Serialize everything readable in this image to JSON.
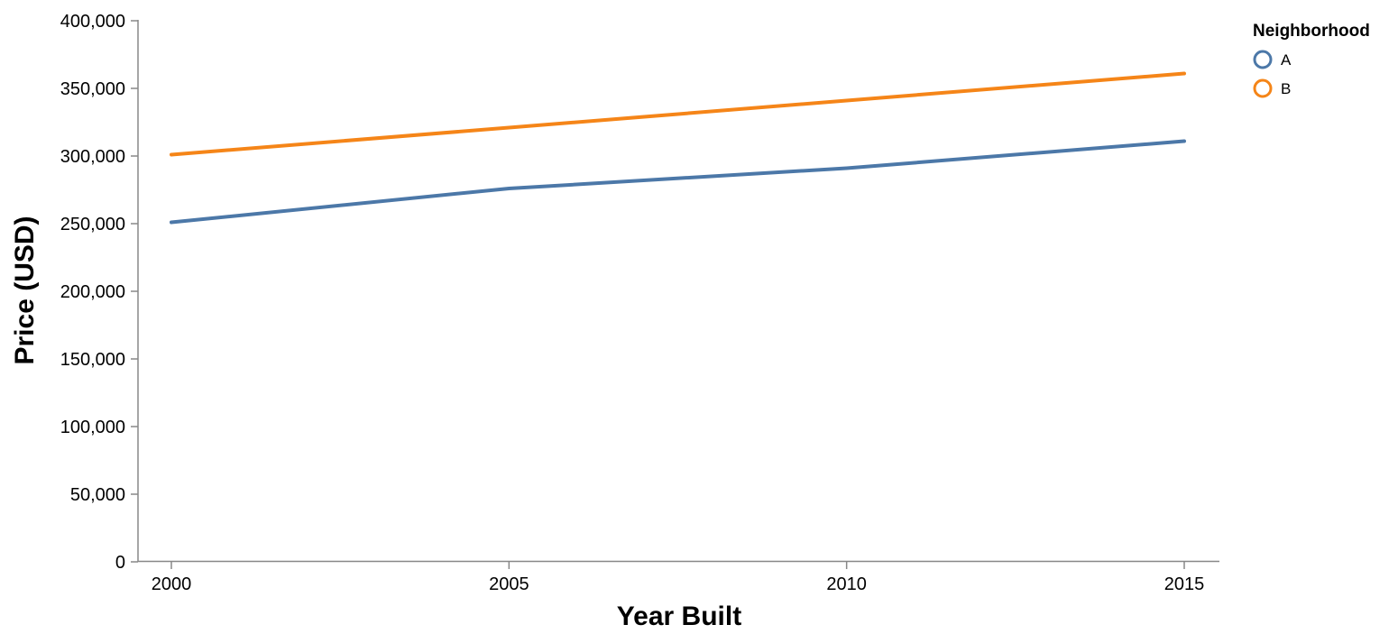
{
  "chart_data": {
    "type": "line",
    "xlabel": "Year Built",
    "ylabel": "Price (USD)",
    "x": [
      2000,
      2005,
      2010,
      2015
    ],
    "xlim": [
      1999.5,
      2015.5
    ],
    "ylim": [
      0,
      400000
    ],
    "x_ticks": [
      "2000",
      "2005",
      "2010",
      "2015"
    ],
    "y_ticks": [
      "0",
      "50,000",
      "100,000",
      "150,000",
      "200,000",
      "250,000",
      "300,000",
      "350,000",
      "400,000"
    ],
    "grid": false,
    "legend": {
      "title": "Neighborhood",
      "placement": "top-right"
    },
    "series": [
      {
        "name": "A",
        "color": "#4c78a8",
        "values": [
          251000,
          276000,
          291000,
          311000
        ]
      },
      {
        "name": "B",
        "color": "#f58518",
        "values": [
          301000,
          321000,
          341000,
          361000
        ]
      }
    ]
  }
}
